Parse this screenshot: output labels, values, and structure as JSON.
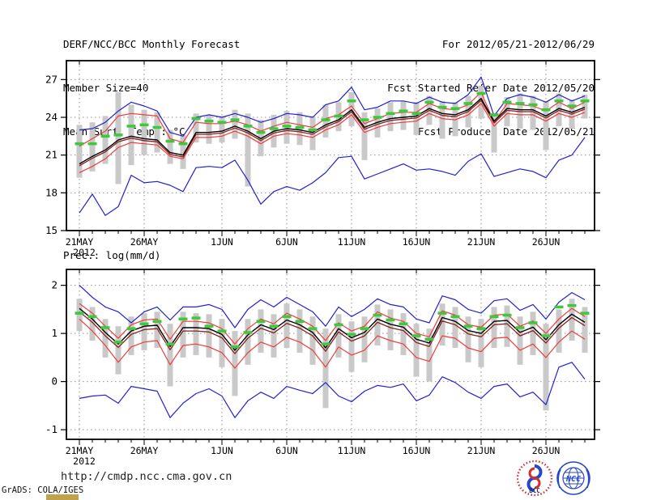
{
  "header": {
    "title": "DERF/NCC/BCC Monthly Forecast",
    "member_size": "Member Size=40",
    "temp_label": "Mean Surf. Temp.: °C",
    "for_range": "For 2012/05/21-2012/06/29",
    "refer_date": "Fcst Started Refer Date 2012/05/20",
    "produced_date": "Fcst Produced Date 2012/05/21"
  },
  "prec_label": "Prec.: log(mm/d)",
  "footer": {
    "url": "http://cmdp.ncc.cma.gov.cn",
    "credit": "GrADS: COLA/IGES",
    "logo_bcc": "BCC",
    "logo_ncc": "NCC"
  },
  "colors": {
    "blue": "#2222cc",
    "red": "#f03c3c",
    "maroon": "#8a1f1f",
    "black": "#000000",
    "green": "#3dc83d",
    "bar_gray": "#c9c9c9",
    "grid": "#909090",
    "frame": "#000000",
    "logo_blue": "#2747c9",
    "logo_red": "#d03030",
    "accent_tan": "#bfa24c"
  },
  "chart_data": [
    {
      "type": "line",
      "title": "Mean Surf. Temp.: °C",
      "xlabel": "",
      "ylabel": "°C",
      "x_tick_labels": [
        "21MAY",
        "26MAY",
        "1JUN",
        "6JUN",
        "11JUN",
        "16JUN",
        "21JUN",
        "26JUN"
      ],
      "x_tick_days": [
        0,
        5,
        11,
        16,
        21,
        26,
        31,
        36
      ],
      "x_sub_label": "2012",
      "n_days": 40,
      "start_date": "2012/05/21",
      "ylim": [
        15,
        28.5
      ],
      "yticks": [
        15,
        18,
        21,
        24,
        27
      ],
      "grid": true,
      "legend": "none",
      "series": [
        {
          "name": "ensemble-max",
          "color": "blue",
          "values": [
            23.0,
            23.1,
            23.6,
            24.5,
            25.2,
            24.9,
            24.5,
            22.8,
            22.5,
            24.0,
            24.2,
            24.0,
            24.3,
            24.0,
            23.6,
            23.9,
            24.3,
            24.2,
            24.0,
            25.0,
            25.3,
            26.4,
            24.6,
            24.8,
            25.3,
            25.3,
            25.1,
            25.6,
            25.2,
            25.1,
            25.8,
            27.2,
            24.1,
            25.5,
            25.8,
            25.6,
            25.2,
            25.8,
            25.3,
            25.7
          ]
        },
        {
          "name": "ensemble-min",
          "color": "blue",
          "values": [
            16.4,
            17.9,
            16.2,
            16.9,
            19.4,
            18.8,
            18.9,
            18.6,
            18.1,
            20.0,
            20.1,
            20.0,
            20.6,
            19.0,
            17.1,
            18.1,
            18.5,
            18.2,
            18.8,
            19.6,
            20.8,
            20.9,
            19.1,
            19.5,
            19.9,
            20.3,
            19.8,
            19.9,
            19.7,
            19.4,
            20.5,
            21.1,
            19.3,
            19.6,
            19.9,
            19.7,
            19.2,
            20.6,
            21.0,
            22.4
          ]
        },
        {
          "name": "upper-quartile",
          "color": "red",
          "values": [
            21.7,
            22.3,
            22.9,
            24.1,
            24.3,
            24.2,
            24.1,
            22.3,
            22.0,
            23.6,
            23.5,
            23.5,
            23.7,
            23.4,
            22.9,
            23.3,
            23.6,
            23.4,
            23.2,
            23.9,
            24.2,
            24.9,
            23.5,
            23.9,
            24.3,
            24.4,
            24.4,
            25.1,
            24.7,
            24.6,
            25.0,
            26.0,
            23.6,
            25.1,
            25.0,
            24.9,
            24.5,
            25.2,
            24.7,
            25.2
          ]
        },
        {
          "name": "lower-quartile",
          "color": "red",
          "values": [
            19.6,
            20.1,
            20.7,
            21.6,
            22.0,
            21.9,
            21.8,
            20.9,
            20.7,
            22.4,
            22.4,
            22.5,
            22.9,
            22.5,
            21.9,
            22.5,
            22.7,
            22.6,
            22.4,
            23.0,
            23.4,
            24.2,
            22.8,
            23.2,
            23.5,
            23.6,
            23.7,
            24.3,
            23.9,
            23.8,
            24.2,
            25.1,
            23.3,
            24.3,
            24.2,
            24.2,
            23.7,
            24.3,
            24.0,
            24.4
          ]
        },
        {
          "name": "ensemble-mean",
          "color": "maroon",
          "values": [
            20.15,
            20.75,
            21.25,
            22.05,
            22.35,
            22.15,
            22.05,
            21.05,
            20.85,
            22.65,
            22.65,
            22.75,
            23.15,
            22.75,
            22.15,
            22.75,
            22.95,
            22.85,
            22.65,
            23.25,
            23.65,
            24.45,
            23.05,
            23.45,
            23.75,
            23.85,
            23.95,
            24.55,
            24.15,
            24.05,
            24.45,
            25.35,
            23.55,
            24.55,
            24.45,
            24.45,
            23.95,
            24.55,
            24.25,
            24.65
          ]
        },
        {
          "name": "ensemble-median",
          "color": "black",
          "values": [
            20.3,
            20.9,
            21.4,
            22.2,
            22.5,
            22.3,
            22.2,
            21.2,
            21.0,
            22.8,
            22.8,
            22.9,
            23.3,
            22.9,
            22.3,
            22.9,
            23.1,
            23.0,
            22.8,
            23.4,
            23.8,
            24.6,
            23.2,
            23.6,
            23.9,
            24.0,
            24.1,
            24.7,
            24.3,
            24.2,
            24.6,
            25.5,
            23.7,
            24.7,
            24.6,
            24.6,
            24.1,
            24.7,
            24.4,
            24.8
          ]
        }
      ],
      "bands": {
        "name": "spread-bar",
        "top": [
          23.4,
          23.6,
          24.1,
          26.0,
          25.0,
          24.6,
          24.4,
          23.0,
          22.6,
          24.3,
          24.2,
          24.1,
          24.6,
          24.3,
          23.8,
          24.2,
          24.5,
          24.4,
          24.1,
          25.0,
          25.2,
          26.0,
          24.4,
          24.7,
          25.2,
          25.3,
          25.2,
          25.7,
          25.3,
          25.2,
          25.7,
          26.5,
          24.3,
          25.6,
          25.9,
          25.7,
          25.3,
          25.9,
          25.4,
          25.8
        ],
        "bottom": [
          19.2,
          19.7,
          20.3,
          18.7,
          20.2,
          21.0,
          21.2,
          20.3,
          19.9,
          22.0,
          21.9,
          22.0,
          22.3,
          18.5,
          20.9,
          21.6,
          21.9,
          21.8,
          21.4,
          22.4,
          22.9,
          23.3,
          20.6,
          22.4,
          22.9,
          23.0,
          22.6,
          23.4,
          22.3,
          22.5,
          23.2,
          23.9,
          21.2,
          23.3,
          23.1,
          23.0,
          21.4,
          23.3,
          23.1,
          23.9
        ]
      },
      "dashes": {
        "name": "climatology-mean",
        "color": "green",
        "values": [
          21.9,
          21.9,
          22.5,
          22.6,
          23.3,
          23.4,
          23.2,
          22.1,
          21.9,
          23.9,
          23.7,
          23.6,
          23.8,
          23.3,
          22.8,
          23.1,
          23.3,
          23.2,
          23.0,
          23.8,
          24.1,
          25.3,
          23.8,
          24.0,
          24.3,
          24.5,
          24.3,
          25.2,
          24.8,
          24.7,
          25.1,
          25.9,
          24.2,
          25.2,
          25.1,
          25.0,
          24.6,
          25.3,
          24.9,
          25.3
        ]
      }
    },
    {
      "type": "line",
      "title": "Prec.: log(mm/d)",
      "xlabel": "",
      "ylabel": "log(mm/d)",
      "x_tick_labels": [
        "21MAY",
        "26MAY",
        "1JUN",
        "6JUN",
        "11JUN",
        "16JUN",
        "21JUN",
        "26JUN"
      ],
      "x_tick_days": [
        0,
        5,
        11,
        16,
        21,
        26,
        31,
        36
      ],
      "x_sub_label": "2012",
      "n_days": 40,
      "start_date": "2012/05/21",
      "ylim": [
        -1.2,
        2.33
      ],
      "yticks": [
        -1,
        0,
        1,
        2
      ],
      "grid": true,
      "legend": "none",
      "series": [
        {
          "name": "ensemble-max",
          "color": "blue",
          "values": [
            2.0,
            1.75,
            1.55,
            1.45,
            1.22,
            1.45,
            1.55,
            1.28,
            1.55,
            1.55,
            1.6,
            1.5,
            1.12,
            1.5,
            1.7,
            1.55,
            1.75,
            1.6,
            1.45,
            1.15,
            1.55,
            1.35,
            1.5,
            1.72,
            1.6,
            1.55,
            1.3,
            1.22,
            1.78,
            1.7,
            1.5,
            1.42,
            1.68,
            1.72,
            1.48,
            1.6,
            1.3,
            1.65,
            1.85,
            1.7
          ]
        },
        {
          "name": "ensemble-min",
          "color": "blue",
          "values": [
            -0.35,
            -0.3,
            -0.28,
            -0.45,
            -0.1,
            -0.15,
            -0.2,
            -0.75,
            -0.45,
            -0.25,
            -0.15,
            -0.3,
            -0.75,
            -0.4,
            -0.22,
            -0.35,
            -0.1,
            -0.18,
            -0.25,
            -0.02,
            -0.3,
            -0.42,
            -0.2,
            -0.08,
            -0.12,
            -0.05,
            -0.4,
            -0.28,
            0.1,
            -0.02,
            -0.22,
            -0.35,
            -0.1,
            -0.05,
            -0.32,
            -0.22,
            -0.48,
            0.3,
            0.4,
            0.05
          ]
        },
        {
          "name": "upper-quartile",
          "color": "red",
          "values": [
            1.62,
            1.42,
            1.15,
            0.9,
            1.18,
            1.28,
            1.3,
            0.88,
            1.25,
            1.25,
            1.22,
            1.1,
            0.78,
            1.1,
            1.3,
            1.2,
            1.42,
            1.3,
            1.15,
            0.85,
            1.22,
            1.05,
            1.15,
            1.45,
            1.32,
            1.25,
            1.0,
            0.93,
            1.47,
            1.38,
            1.18,
            1.13,
            1.38,
            1.4,
            1.15,
            1.26,
            1.0,
            1.3,
            1.52,
            1.35
          ]
        },
        {
          "name": "lower-quartile",
          "color": "red",
          "values": [
            1.3,
            1.05,
            0.75,
            0.4,
            0.72,
            0.82,
            0.85,
            0.35,
            0.75,
            0.78,
            0.72,
            0.6,
            0.28,
            0.6,
            0.82,
            0.72,
            0.92,
            0.82,
            0.65,
            0.3,
            0.72,
            0.55,
            0.65,
            0.95,
            0.85,
            0.78,
            0.5,
            0.42,
            0.95,
            0.9,
            0.7,
            0.62,
            0.9,
            0.92,
            0.65,
            0.78,
            0.5,
            0.82,
            1.05,
            0.88
          ]
        },
        {
          "name": "ensemble-mean",
          "color": "maroon",
          "values": [
            1.45,
            1.23,
            0.95,
            0.71,
            0.98,
            1.08,
            1.1,
            0.66,
            1.05,
            1.05,
            1.03,
            0.91,
            0.58,
            0.9,
            1.11,
            1.01,
            1.21,
            1.11,
            0.95,
            0.63,
            1.03,
            0.84,
            0.95,
            1.23,
            1.12,
            1.06,
            0.81,
            0.73,
            1.26,
            1.18,
            0.99,
            0.93,
            1.18,
            1.2,
            0.95,
            1.06,
            0.8,
            1.11,
            1.33,
            1.16
          ]
        },
        {
          "name": "ensemble-median",
          "color": "black",
          "values": [
            1.52,
            1.3,
            1.02,
            0.78,
            1.05,
            1.15,
            1.17,
            0.73,
            1.12,
            1.12,
            1.1,
            0.98,
            0.65,
            0.97,
            1.18,
            1.08,
            1.28,
            1.18,
            1.02,
            0.7,
            1.1,
            0.91,
            1.02,
            1.3,
            1.19,
            1.13,
            0.88,
            0.8,
            1.33,
            1.25,
            1.06,
            1.0,
            1.25,
            1.27,
            1.02,
            1.13,
            0.87,
            1.18,
            1.4,
            1.23
          ]
        }
      ],
      "bands": {
        "name": "spread-bar",
        "top": [
          1.72,
          1.55,
          1.3,
          1.15,
          1.35,
          1.42,
          1.45,
          1.2,
          1.45,
          1.42,
          1.4,
          1.3,
          1.05,
          1.3,
          1.5,
          1.4,
          1.62,
          1.5,
          1.35,
          1.1,
          1.4,
          1.25,
          1.35,
          1.6,
          1.5,
          1.42,
          1.2,
          1.1,
          1.62,
          1.55,
          1.35,
          1.3,
          1.55,
          1.58,
          1.35,
          1.45,
          1.2,
          1.5,
          1.72,
          1.55
        ],
        "bottom": [
          1.05,
          0.85,
          0.5,
          0.15,
          0.55,
          0.65,
          0.7,
          -0.1,
          0.5,
          0.55,
          0.5,
          0.3,
          -0.3,
          0.35,
          0.6,
          0.5,
          0.7,
          0.6,
          0.35,
          -0.55,
          0.5,
          0.2,
          0.4,
          0.75,
          0.65,
          0.55,
          0.1,
          0.0,
          0.75,
          0.7,
          0.4,
          0.3,
          0.7,
          0.72,
          0.35,
          0.55,
          -0.6,
          0.6,
          0.85,
          0.6
        ]
      },
      "dashes": {
        "name": "climatology-mean",
        "color": "green",
        "values": [
          1.42,
          1.35,
          1.12,
          0.82,
          1.1,
          1.2,
          1.25,
          0.78,
          1.3,
          1.32,
          1.15,
          1.05,
          0.72,
          1.02,
          1.25,
          1.15,
          1.35,
          1.25,
          1.1,
          0.78,
          1.18,
          0.98,
          1.1,
          1.38,
          1.28,
          1.2,
          0.95,
          0.88,
          1.42,
          1.35,
          1.15,
          1.1,
          1.35,
          1.38,
          1.12,
          1.22,
          0.95,
          1.55,
          1.58,
          1.42
        ]
      }
    }
  ]
}
